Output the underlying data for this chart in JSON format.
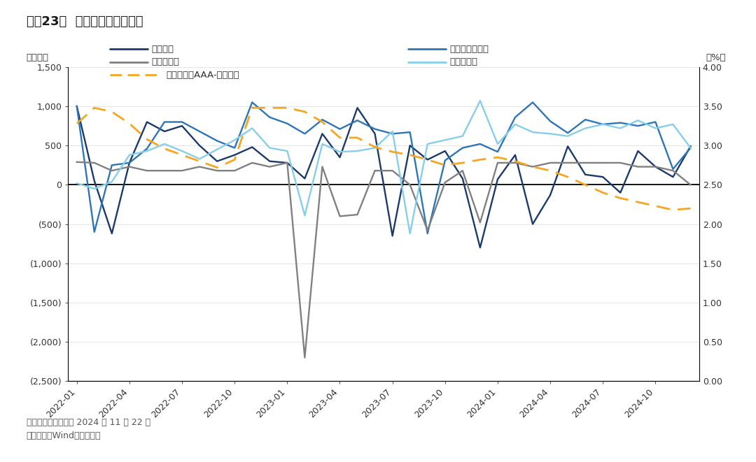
{
  "title": "图表23：  二永债机构持有金额",
  "ylabel_left": "（亿元）",
  "ylabel_right": "（%）",
  "note": "注：数据截止日期为 2024 年 11 月 22 日",
  "source": "资料来源：Wind，华泰研究",
  "x_labels": [
    "2022-01",
    "2022-04",
    "2022-07",
    "2022-10",
    "2023-01",
    "2023-04",
    "2023-07",
    "2023-10",
    "2024-01",
    "2024-04",
    "2024-07",
    "2024-10"
  ],
  "insurance_label": "保险公司",
  "insurance_color": "#1b3a6b",
  "insurance_data": [
    1000,
    50,
    -620,
    280,
    800,
    680,
    750,
    500,
    300,
    380,
    480,
    300,
    280,
    80,
    650,
    350,
    980,
    650,
    -650,
    500,
    320,
    430,
    80,
    -800,
    70,
    380,
    -500,
    -130,
    490,
    130,
    100,
    -100,
    430,
    230,
    100,
    490
  ],
  "fund_label": "基金公司及产品",
  "fund_color": "#2e75b6",
  "fund_data": [
    1000,
    -600,
    250,
    280,
    460,
    800,
    800,
    680,
    560,
    470,
    1050,
    860,
    780,
    650,
    830,
    710,
    820,
    710,
    650,
    670,
    -620,
    310,
    470,
    520,
    420,
    860,
    1050,
    810,
    660,
    830,
    770,
    790,
    750,
    800,
    200,
    470
  ],
  "wealth_label": "理财类产品",
  "wealth_color": "#808080",
  "wealth_data": [
    290,
    280,
    180,
    230,
    180,
    180,
    180,
    230,
    180,
    180,
    280,
    230,
    280,
    -2200,
    230,
    -400,
    -380,
    180,
    180,
    0,
    -580,
    30,
    180,
    -480,
    280,
    280,
    230,
    280,
    280,
    280,
    280,
    280,
    230,
    230,
    180,
    0
  ],
  "other_label": "其他产品类",
  "other_color": "#87ceeb",
  "other_data": [
    20,
    -50,
    40,
    380,
    430,
    520,
    430,
    330,
    450,
    570,
    720,
    470,
    430,
    -390,
    520,
    420,
    430,
    470,
    680,
    -620,
    520,
    570,
    620,
    1070,
    520,
    770,
    670,
    650,
    620,
    720,
    770,
    720,
    820,
    720,
    770,
    470
  ],
  "yield_label": "二级资本债AAA-（三年）",
  "yield_color": "#f5a623",
  "yield_data": [
    3.28,
    3.48,
    3.43,
    3.28,
    3.08,
    2.96,
    2.88,
    2.8,
    2.72,
    2.82,
    3.48,
    3.48,
    3.48,
    3.43,
    3.3,
    3.1,
    3.1,
    2.98,
    2.92,
    2.88,
    2.82,
    2.75,
    2.78,
    2.82,
    2.85,
    2.8,
    2.73,
    2.68,
    2.6,
    2.5,
    2.4,
    2.33,
    2.28,
    2.23,
    2.18,
    2.2
  ],
  "ylim_left": [
    -2500,
    1500
  ],
  "ylim_right": [
    0.0,
    4.0
  ],
  "yticks_left": [
    -2500,
    -2000,
    -1500,
    -1000,
    -500,
    0,
    500,
    1000,
    1500
  ],
  "ytick_labels_left": [
    "(2,500)",
    "(2,000)",
    "(1,500)",
    "(1,000)",
    "(500)",
    "0",
    "500",
    "1,000",
    "1,500"
  ],
  "yticks_right": [
    0.0,
    0.5,
    1.0,
    1.5,
    2.0,
    2.5,
    3.0,
    3.5,
    4.0
  ],
  "ytick_labels_right": [
    "0.00",
    "0.50",
    "1.00",
    "1.50",
    "2.00",
    "2.50",
    "3.00",
    "3.50",
    "4.00"
  ],
  "background_color": "#ffffff",
  "title_color": "#1a1a1a",
  "header_color_dark": "#1e3a6e",
  "header_color_light": "#6baed6",
  "grid_color": "#e0e0e0",
  "tick_label_color": "#333333",
  "note_color": "#555555"
}
